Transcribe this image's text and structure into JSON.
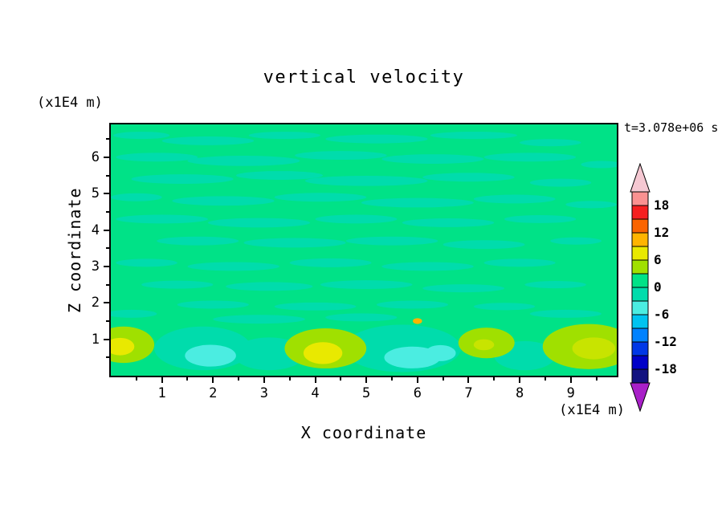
{
  "chart_data": {
    "type": "heatmap",
    "title": "vertical velocity",
    "xlabel": "X coordinate",
    "ylabel": "Z coordinate",
    "x_units": "(x1E4 m)",
    "y_units": "(x1E4 m)",
    "time_label": "t=3.078e+06 s",
    "xlim": [
      0,
      9.9
    ],
    "ylim": [
      0,
      6.9
    ],
    "x_ticks": [
      1,
      2,
      3,
      4,
      5,
      6,
      7,
      8,
      9
    ],
    "y_ticks": [
      1,
      2,
      3,
      4,
      5,
      6
    ],
    "minor_tick_step": 0.5,
    "grid": false,
    "legend_position": "right",
    "colorbar": {
      "labels": [
        18,
        12,
        6,
        0,
        -6,
        -12,
        -18
      ],
      "level_step": 3,
      "above_color": "#F5C8D2",
      "below_color": "#A820C8",
      "bands_top_to_bottom": [
        {
          "range": "18 to 21",
          "color": "#FA9191"
        },
        {
          "range": "15 to 18",
          "color": "#F52020"
        },
        {
          "range": "12 to 15",
          "color": "#FA6400"
        },
        {
          "range": "9 to 12",
          "color": "#FFB400"
        },
        {
          "range": "6 to 9",
          "color": "#E9E900"
        },
        {
          "range": "3 to 6",
          "color": "#A0E000"
        },
        {
          "range": "0 to 3",
          "color": "#00E287"
        },
        {
          "range": "-3 to 0",
          "color": "#00DCAC"
        },
        {
          "range": "-6 to -3",
          "color": "#4BEDE1"
        },
        {
          "range": "-9 to -6",
          "color": "#00C3F0"
        },
        {
          "range": "-12 to -9",
          "color": "#0082FF"
        },
        {
          "range": "-15 to -12",
          "color": "#0037E6"
        },
        {
          "range": "-18 to -15",
          "color": "#0000C8"
        },
        {
          "range": "-21 to -18",
          "color": "#121280"
        }
      ]
    },
    "field": {
      "background_value_range": "0 to 3",
      "background_color": "#00E287",
      "streak_value_range": "-3 to 0",
      "streak_color": "#00DCAC",
      "streaks": [
        [
          0.6,
          6.6,
          0.55,
          0.1
        ],
        [
          1.9,
          6.45,
          0.9,
          0.12
        ],
        [
          3.4,
          6.6,
          0.7,
          0.1
        ],
        [
          5.2,
          6.5,
          1.0,
          0.12
        ],
        [
          7.1,
          6.6,
          0.85,
          0.1
        ],
        [
          8.6,
          6.4,
          0.6,
          0.1
        ],
        [
          0.9,
          6.0,
          0.8,
          0.12
        ],
        [
          2.6,
          5.9,
          1.1,
          0.14
        ],
        [
          4.5,
          6.05,
          0.9,
          0.12
        ],
        [
          6.3,
          5.95,
          1.0,
          0.13
        ],
        [
          8.2,
          6.0,
          0.9,
          0.12
        ],
        [
          9.6,
          5.8,
          0.4,
          0.1
        ],
        [
          1.4,
          5.4,
          1.0,
          0.13
        ],
        [
          3.3,
          5.5,
          0.85,
          0.12
        ],
        [
          5.0,
          5.35,
          1.2,
          0.14
        ],
        [
          7.0,
          5.45,
          0.9,
          0.12
        ],
        [
          8.8,
          5.3,
          0.6,
          0.11
        ],
        [
          0.5,
          4.9,
          0.5,
          0.11
        ],
        [
          2.2,
          4.8,
          1.0,
          0.13
        ],
        [
          4.1,
          4.9,
          0.9,
          0.12
        ],
        [
          6.0,
          4.75,
          1.1,
          0.13
        ],
        [
          7.9,
          4.85,
          0.8,
          0.12
        ],
        [
          9.4,
          4.7,
          0.5,
          0.1
        ],
        [
          1.0,
          4.3,
          0.9,
          0.12
        ],
        [
          2.9,
          4.2,
          1.0,
          0.13
        ],
        [
          4.8,
          4.3,
          0.8,
          0.12
        ],
        [
          6.6,
          4.2,
          0.9,
          0.12
        ],
        [
          8.4,
          4.3,
          0.7,
          0.11
        ],
        [
          1.7,
          3.7,
          0.8,
          0.12
        ],
        [
          3.6,
          3.65,
          1.0,
          0.13
        ],
        [
          5.5,
          3.7,
          0.9,
          0.12
        ],
        [
          7.3,
          3.6,
          0.8,
          0.12
        ],
        [
          9.1,
          3.7,
          0.5,
          0.1
        ],
        [
          0.7,
          3.1,
          0.6,
          0.11
        ],
        [
          2.4,
          3.0,
          0.9,
          0.12
        ],
        [
          4.3,
          3.1,
          0.8,
          0.12
        ],
        [
          6.2,
          3.0,
          0.9,
          0.12
        ],
        [
          8.0,
          3.1,
          0.7,
          0.11
        ],
        [
          1.3,
          2.5,
          0.7,
          0.11
        ],
        [
          3.1,
          2.45,
          0.85,
          0.12
        ],
        [
          5.0,
          2.5,
          0.9,
          0.12
        ],
        [
          6.9,
          2.4,
          0.8,
          0.11
        ],
        [
          8.7,
          2.5,
          0.6,
          0.1
        ],
        [
          2.0,
          1.95,
          0.7,
          0.11
        ],
        [
          4.0,
          1.9,
          0.8,
          0.11
        ],
        [
          5.9,
          1.95,
          0.7,
          0.11
        ],
        [
          7.7,
          1.9,
          0.6,
          0.1
        ],
        [
          0.4,
          1.7,
          0.5,
          0.11
        ],
        [
          2.9,
          1.55,
          0.9,
          0.12
        ],
        [
          4.9,
          1.6,
          0.7,
          0.11
        ],
        [
          8.9,
          1.7,
          0.7,
          0.11
        ]
      ],
      "blobs": [
        {
          "x": 1.8,
          "z": 0.75,
          "rx": 0.95,
          "rz": 0.6,
          "color": "#00DCAC"
        },
        {
          "x": 3.1,
          "z": 0.6,
          "rx": 0.7,
          "rz": 0.45,
          "color": "#00DCAC"
        },
        {
          "x": 5.7,
          "z": 0.75,
          "rx": 1.15,
          "rz": 0.65,
          "color": "#00DCAC"
        },
        {
          "x": 8.1,
          "z": 0.55,
          "rx": 0.6,
          "rz": 0.4,
          "color": "#00DCAC"
        },
        {
          "x": 1.95,
          "z": 0.55,
          "rx": 0.5,
          "rz": 0.3,
          "color": "#4BEDE1"
        },
        {
          "x": 5.9,
          "z": 0.5,
          "rx": 0.55,
          "rz": 0.3,
          "color": "#4BEDE1"
        },
        {
          "x": 6.45,
          "z": 0.62,
          "rx": 0.3,
          "rz": 0.22,
          "color": "#4BEDE1"
        },
        {
          "x": 0.25,
          "z": 0.85,
          "rx": 0.6,
          "rz": 0.5,
          "color": "#A0E000"
        },
        {
          "x": 4.2,
          "z": 0.75,
          "rx": 0.8,
          "rz": 0.55,
          "color": "#A0E000"
        },
        {
          "x": 7.35,
          "z": 0.9,
          "rx": 0.55,
          "rz": 0.42,
          "color": "#A0E000"
        },
        {
          "x": 9.35,
          "z": 0.8,
          "rx": 0.9,
          "rz": 0.62,
          "color": "#A0E000"
        },
        {
          "x": 0.18,
          "z": 0.8,
          "rx": 0.28,
          "rz": 0.24,
          "color": "#E9E900"
        },
        {
          "x": 4.15,
          "z": 0.62,
          "rx": 0.38,
          "rz": 0.3,
          "color": "#E9E900"
        },
        {
          "x": 9.45,
          "z": 0.75,
          "rx": 0.42,
          "rz": 0.3,
          "color": "#C8E400"
        },
        {
          "x": 7.3,
          "z": 0.85,
          "rx": 0.2,
          "rz": 0.15,
          "color": "#C8E400"
        },
        {
          "x": 6.0,
          "z": 1.5,
          "rx": 0.09,
          "rz": 0.08,
          "color": "#FFB400"
        }
      ]
    }
  }
}
